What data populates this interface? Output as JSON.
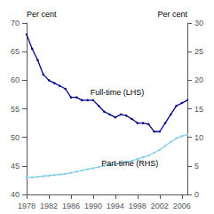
{
  "chart_data": {
    "type": "line",
    "x": [
      1978,
      1979,
      1980,
      1981,
      1982,
      1983,
      1984,
      1985,
      1986,
      1987,
      1988,
      1989,
      1990,
      1991,
      1992,
      1993,
      1994,
      1995,
      1996,
      1997,
      1998,
      1999,
      2000,
      2001,
      2002,
      2003,
      2004,
      2005,
      2006,
      2007
    ],
    "series": [
      {
        "color": "#00008B",
        "marker": "dot",
        "axis": "y",
        "values": [
          68.0,
          65.5,
          63.5,
          61.0,
          60.0,
          59.5,
          59.0,
          58.5,
          57.0,
          57.0,
          56.5,
          56.5,
          56.5,
          55.5,
          54.5,
          54.0,
          53.5,
          54.0,
          53.8,
          53.2,
          52.5,
          52.5,
          52.3,
          51.0,
          51.0,
          52.5,
          54.0,
          55.5,
          56.0,
          56.5
        ]
      },
      {
        "color": "#87CEEB",
        "marker": "dot",
        "axis": "y2",
        "values": [
          3.0,
          3.0,
          3.1,
          3.2,
          3.3,
          3.4,
          3.5,
          3.6,
          3.8,
          4.0,
          4.2,
          4.4,
          4.6,
          4.8,
          5.0,
          5.2,
          5.3,
          5.5,
          5.7,
          5.9,
          6.2,
          6.5,
          6.8,
          7.3,
          7.8,
          8.5,
          9.2,
          9.8,
          10.2,
          10.5
        ]
      }
    ],
    "xlim": [
      1978,
      2007
    ],
    "xticks": [
      1978,
      1982,
      1986,
      1990,
      1994,
      1998,
      2002,
      2006
    ],
    "ylim": [
      40,
      70
    ],
    "yticks": [
      40,
      45,
      50,
      55,
      60,
      65,
      70
    ],
    "y2lim": [
      0,
      30
    ],
    "y2ticks": [
      0,
      5,
      10,
      15,
      20,
      25,
      30
    ],
    "ylabel": "Per cent",
    "y2label": "Per cent",
    "annotations": [
      {
        "text": "Full-time (LHS)",
        "x": 1989.5,
        "y": 57.2,
        "axis": "y"
      },
      {
        "text": "Part-time (RHS)",
        "x": 1991.5,
        "y": 44.8,
        "axis": "y"
      }
    ],
    "grid": false
  }
}
